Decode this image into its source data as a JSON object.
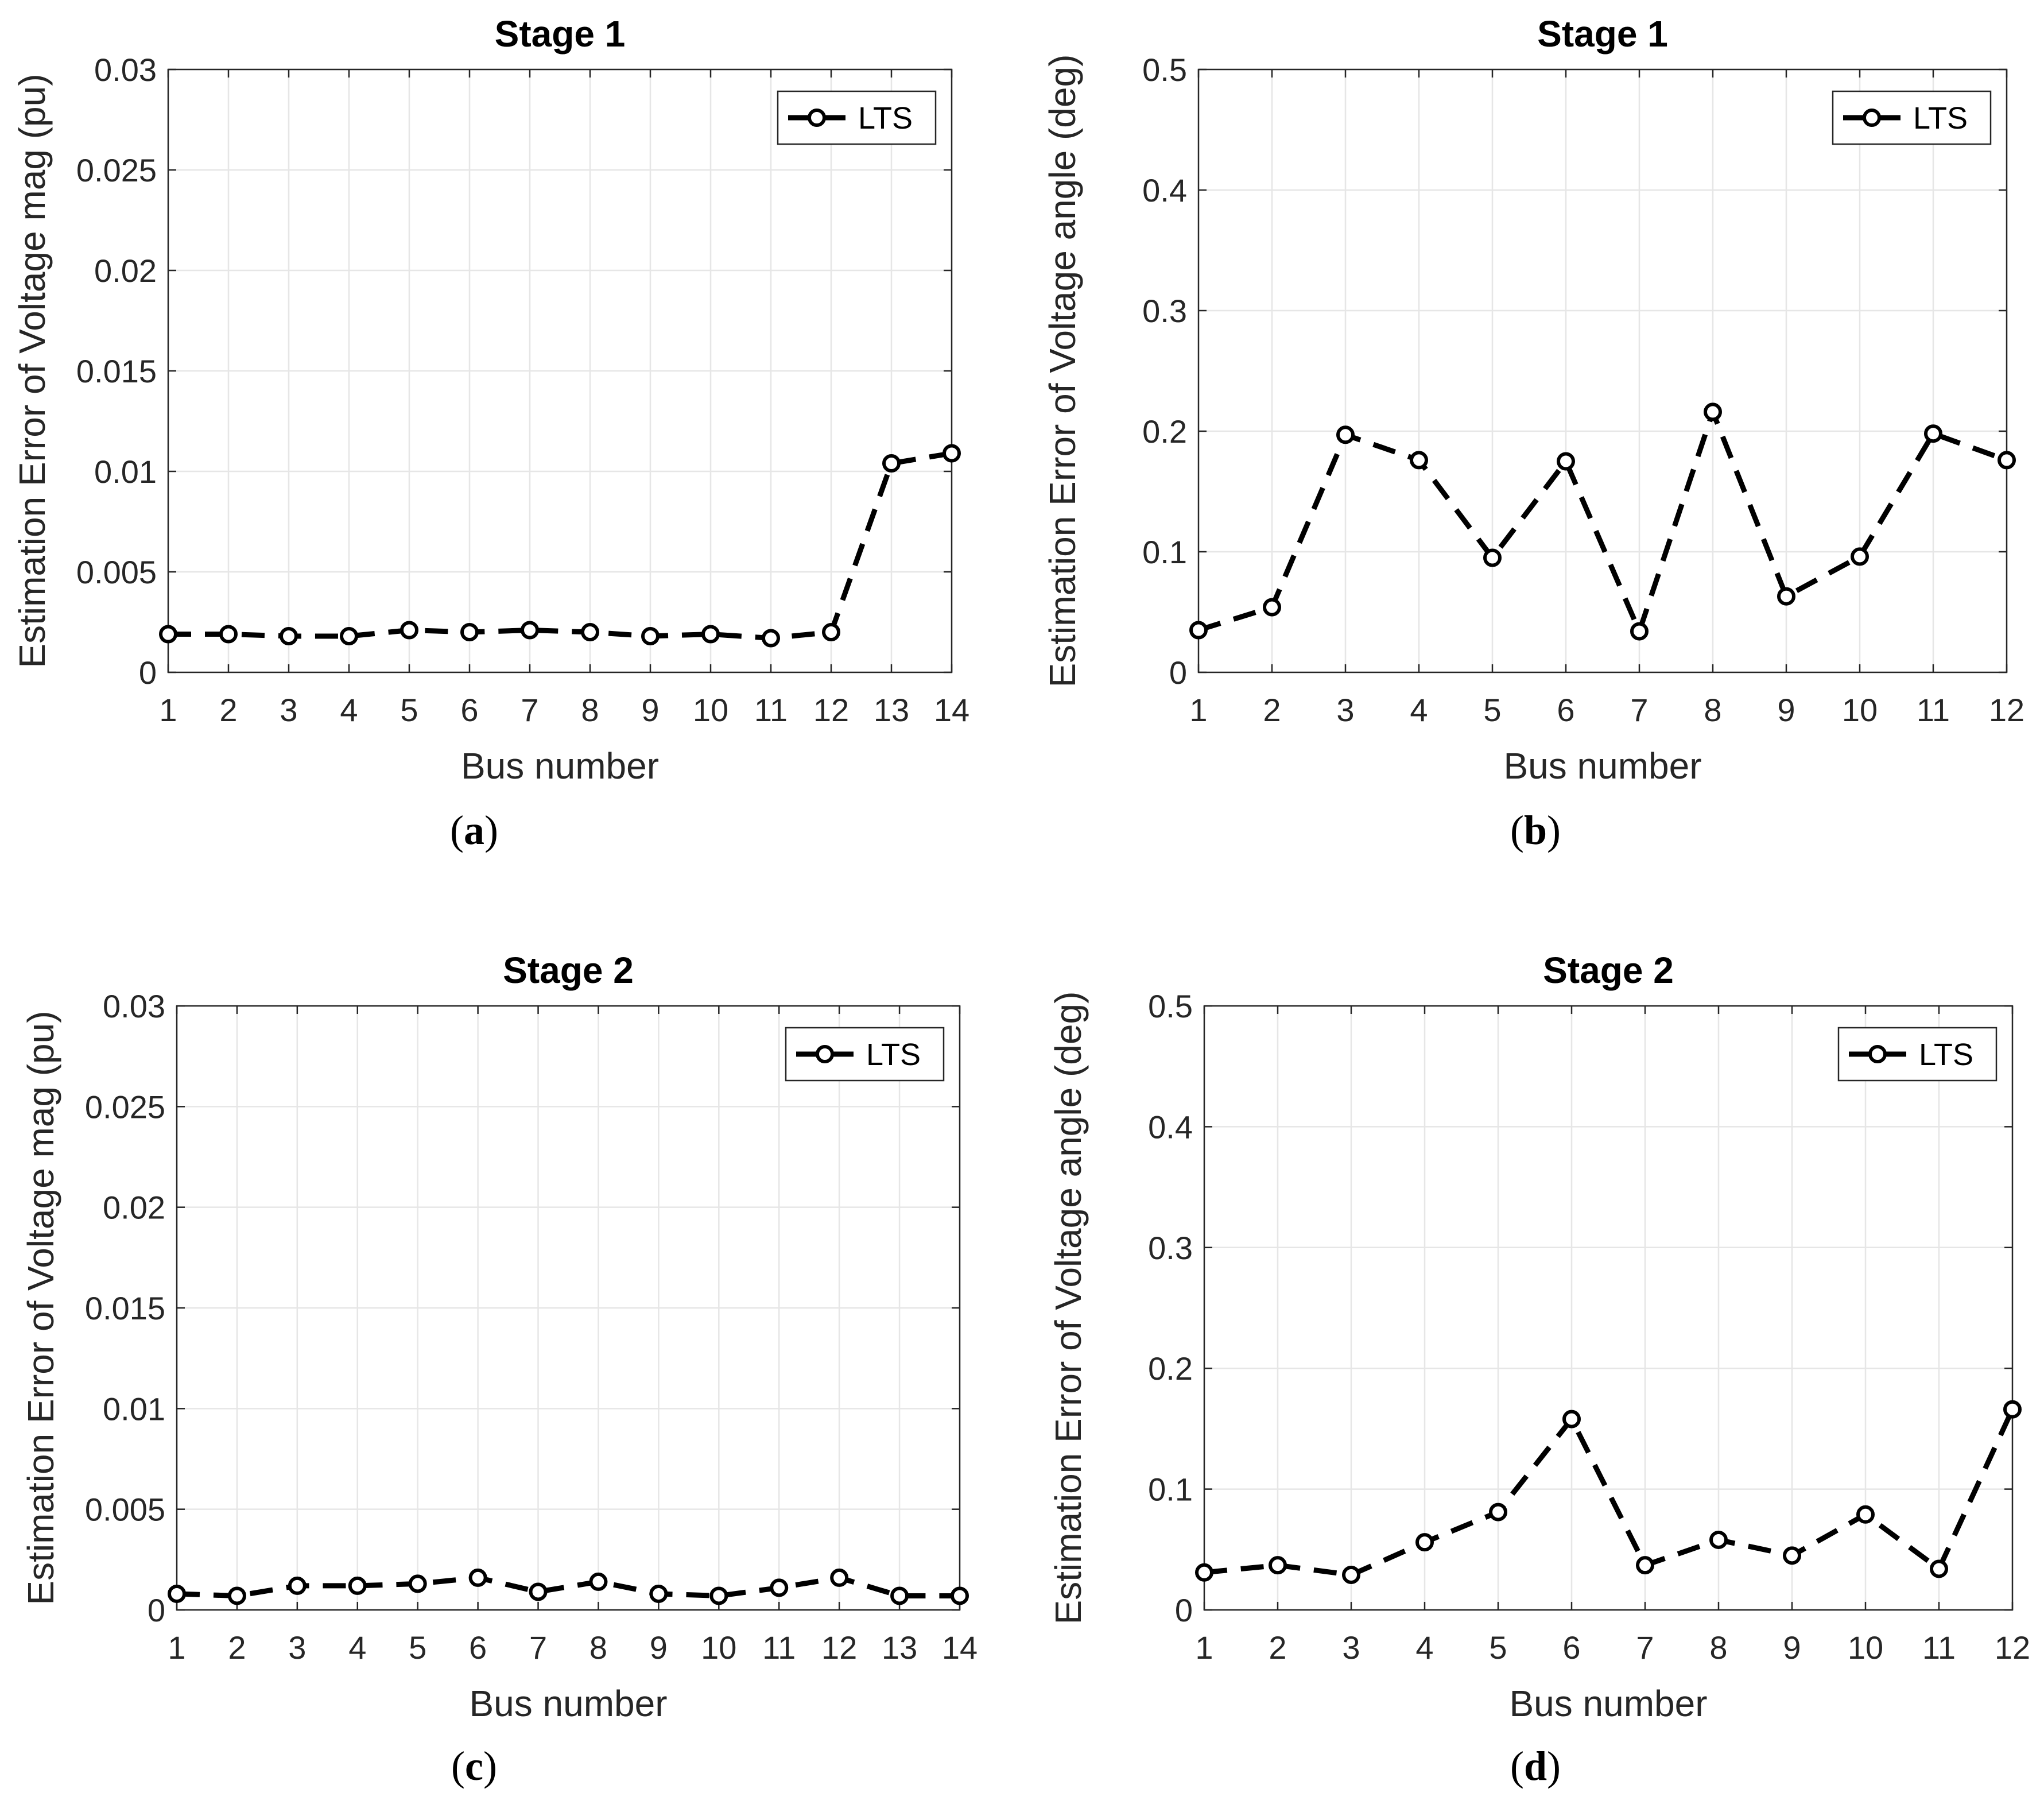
{
  "chart_data": [
    {
      "id": "a",
      "type": "line",
      "title": "Stage 1",
      "xlabel": "Bus number",
      "ylabel": "Estimation Error of Voltage mag (pu)",
      "caption_letter": "a",
      "xlim": [
        1,
        14
      ],
      "ylim": [
        0,
        0.03
      ],
      "xticks": [
        1,
        2,
        3,
        4,
        5,
        6,
        7,
        8,
        9,
        10,
        11,
        12,
        13,
        14
      ],
      "xtick_labels": [
        "1",
        "2",
        "3",
        "4",
        "5",
        "6",
        "7",
        "8",
        "9",
        "10",
        "11",
        "12",
        "13",
        "14"
      ],
      "yticks": [
        0,
        0.005,
        0.01,
        0.015,
        0.02,
        0.025,
        0.03
      ],
      "ytick_labels": [
        "0",
        "0.005",
        "0.01",
        "0.015",
        "0.02",
        "0.025",
        "0.03"
      ],
      "grid": true,
      "legend_position": "top-right",
      "series": [
        {
          "name": "LTS",
          "x": [
            1,
            2,
            3,
            4,
            5,
            6,
            7,
            8,
            9,
            10,
            11,
            12,
            13,
            14
          ],
          "values": [
            0.0019,
            0.0019,
            0.0018,
            0.0018,
            0.0021,
            0.002,
            0.0021,
            0.002,
            0.0018,
            0.0019,
            0.0017,
            0.002,
            0.0104,
            0.0109
          ]
        }
      ]
    },
    {
      "id": "b",
      "type": "line",
      "title": "Stage 1",
      "xlabel": "Bus number",
      "ylabel": "Estimation Error of Voltage angle (deg)",
      "caption_letter": "b",
      "xlim": [
        1,
        12
      ],
      "ylim": [
        0,
        0.5
      ],
      "xticks": [
        1,
        2,
        3,
        4,
        5,
        6,
        7,
        8,
        9,
        10,
        11,
        12
      ],
      "xtick_labels": [
        "1",
        "2",
        "3",
        "4",
        "5",
        "6",
        "7",
        "8",
        "9",
        "10",
        "11",
        "12"
      ],
      "yticks": [
        0,
        0.1,
        0.2,
        0.3,
        0.4,
        0.5
      ],
      "ytick_labels": [
        "0",
        "0.1",
        "0.2",
        "0.3",
        "0.4",
        "0.5"
      ],
      "grid": true,
      "legend_position": "top-right",
      "series": [
        {
          "name": "LTS",
          "x": [
            1,
            2,
            3,
            4,
            5,
            6,
            7,
            8,
            9,
            10,
            11,
            12
          ],
          "values": [
            0.035,
            0.054,
            0.197,
            0.176,
            0.095,
            0.175,
            0.034,
            0.216,
            0.063,
            0.096,
            0.198,
            0.176
          ]
        }
      ]
    },
    {
      "id": "c",
      "type": "line",
      "title": "Stage 2",
      "xlabel": "Bus number",
      "ylabel": "Estimation Error of Voltage mag (pu)",
      "caption_letter": "c",
      "xlim": [
        1,
        14
      ],
      "ylim": [
        0,
        0.03
      ],
      "xticks": [
        1,
        2,
        3,
        4,
        5,
        6,
        7,
        8,
        9,
        10,
        11,
        12,
        13,
        14
      ],
      "xtick_labels": [
        "1",
        "2",
        "3",
        "4",
        "5",
        "6",
        "7",
        "8",
        "9",
        "10",
        "11",
        "12",
        "13",
        "14"
      ],
      "yticks": [
        0,
        0.005,
        0.01,
        0.015,
        0.02,
        0.025,
        0.03
      ],
      "ytick_labels": [
        "0",
        "0.005",
        "0.01",
        "0.015",
        "0.02",
        "0.025",
        "0.03"
      ],
      "grid": true,
      "legend_position": "top-right",
      "series": [
        {
          "name": "LTS",
          "x": [
            1,
            2,
            3,
            4,
            5,
            6,
            7,
            8,
            9,
            10,
            11,
            12,
            13,
            14
          ],
          "values": [
            0.0008,
            0.0007,
            0.0012,
            0.0012,
            0.0013,
            0.0016,
            0.0009,
            0.0014,
            0.0008,
            0.0007,
            0.0011,
            0.0016,
            0.0007,
            0.0007
          ]
        }
      ]
    },
    {
      "id": "d",
      "type": "line",
      "title": "Stage 2",
      "xlabel": "Bus number",
      "ylabel": "Estimation Error of Voltage angle (deg)",
      "caption_letter": "d",
      "xlim": [
        1,
        12
      ],
      "ylim": [
        0,
        0.5
      ],
      "xticks": [
        1,
        2,
        3,
        4,
        5,
        6,
        7,
        8,
        9,
        10,
        11,
        12
      ],
      "xtick_labels": [
        "1",
        "2",
        "3",
        "4",
        "5",
        "6",
        "7",
        "8",
        "9",
        "10",
        "11",
        "12"
      ],
      "yticks": [
        0,
        0.1,
        0.2,
        0.3,
        0.4,
        0.5
      ],
      "ytick_labels": [
        "0",
        "0.1",
        "0.2",
        "0.3",
        "0.4",
        "0.5"
      ],
      "grid": true,
      "legend_position": "top-right",
      "series": [
        {
          "name": "LTS",
          "x": [
            1,
            2,
            3,
            4,
            5,
            6,
            7,
            8,
            9,
            10,
            11,
            12
          ],
          "values": [
            0.031,
            0.037,
            0.029,
            0.056,
            0.081,
            0.158,
            0.037,
            0.058,
            0.045,
            0.079,
            0.034,
            0.166
          ]
        }
      ]
    }
  ],
  "colors": {
    "line": "#000000",
    "grid": "#e6e6e6",
    "axis": "#262626",
    "marker_fill": "#ffffff"
  }
}
